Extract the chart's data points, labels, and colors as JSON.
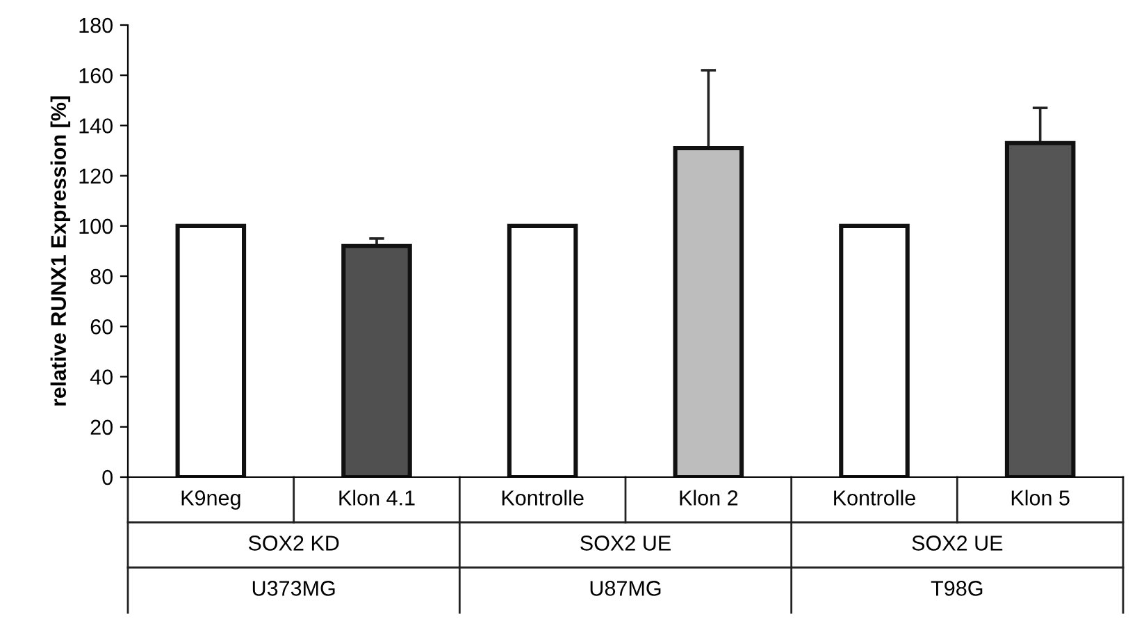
{
  "chart_data": {
    "type": "bar",
    "ylabel": "relative RUNX1 Expression [%]",
    "categories": [
      "K9neg",
      "Klon 4.1",
      "Kontrolle",
      "Klon 2",
      "Kontrolle",
      "Klon 5"
    ],
    "values": [
      100,
      92,
      100,
      131,
      100,
      133
    ],
    "colors": [
      "#ffffff",
      "#505050",
      "#ffffff",
      "#bdbdbd",
      "#ffffff",
      "#555555"
    ],
    "errors": [
      null,
      [
        92,
        95
      ],
      null,
      [
        131,
        162
      ],
      null,
      [
        133,
        147
      ]
    ],
    "ylim": [
      0,
      180
    ],
    "yticks": [
      0,
      20,
      40,
      60,
      80,
      100,
      120,
      140,
      160,
      180
    ],
    "annotations": [
      "SOX2 KD",
      "U373MG",
      "SOX2 UE",
      "U87MG",
      "SOX2 UE",
      "T98G"
    ],
    "grid": false,
    "legend": false
  }
}
